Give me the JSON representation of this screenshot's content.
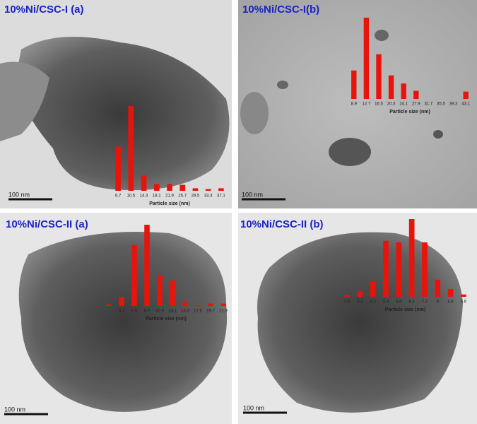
{
  "chart_data": [
    {
      "type": "bar",
      "title": "10%Ni/CSC-I (a)",
      "x_label": "Particle size (nm)",
      "scale_label": "100 nm",
      "color": "#e8140c",
      "categories": [
        "6.7",
        "10.5",
        "14.3",
        "18.1",
        "21.9",
        "25.7",
        "29.5",
        "33.3",
        "37.1"
      ],
      "values": [
        52,
        100,
        18,
        8,
        8,
        7,
        3,
        2,
        3
      ]
    },
    {
      "type": "bar",
      "title": "10%Ni/CSC-I(b)",
      "x_label": "Particle size (nm)",
      "scale_label": "100 nm",
      "color": "#e8140c",
      "categories": [
        "8.9",
        "12.7",
        "16.5",
        "20.3",
        "24.1",
        "27.9",
        "31.7",
        "35.5",
        "39.3",
        "43.1"
      ],
      "values": [
        35,
        100,
        55,
        29,
        19,
        10,
        0,
        0,
        0,
        9
      ]
    },
    {
      "type": "bar",
      "title": "10%Ni/CSC-II (a)",
      "x_label": "Particle size (nm)",
      "scale_label": "100 nm",
      "color": "#e8140c",
      "categories": [
        null,
        "4.1",
        "6.5",
        "8.7",
        "10.9",
        "13.1",
        "15.3",
        "17.5",
        "19.7",
        "21.9"
      ],
      "values": [
        2,
        11,
        75,
        100,
        38,
        31,
        5,
        1,
        3,
        3
      ]
    },
    {
      "type": "bar",
      "title": "10%Ni/CSC-II (b)",
      "x_label": "Particle size (nm)",
      "scale_label": "100 nm",
      "color": "#e8140c",
      "categories": [
        "2.6",
        "3.4",
        "4.2",
        "4.9",
        "5.6",
        "6.4",
        "7.2",
        "8",
        "8.8",
        "9.6"
      ],
      "values": [
        2,
        7,
        20,
        72,
        70,
        100,
        70,
        22,
        10,
        3
      ]
    }
  ]
}
